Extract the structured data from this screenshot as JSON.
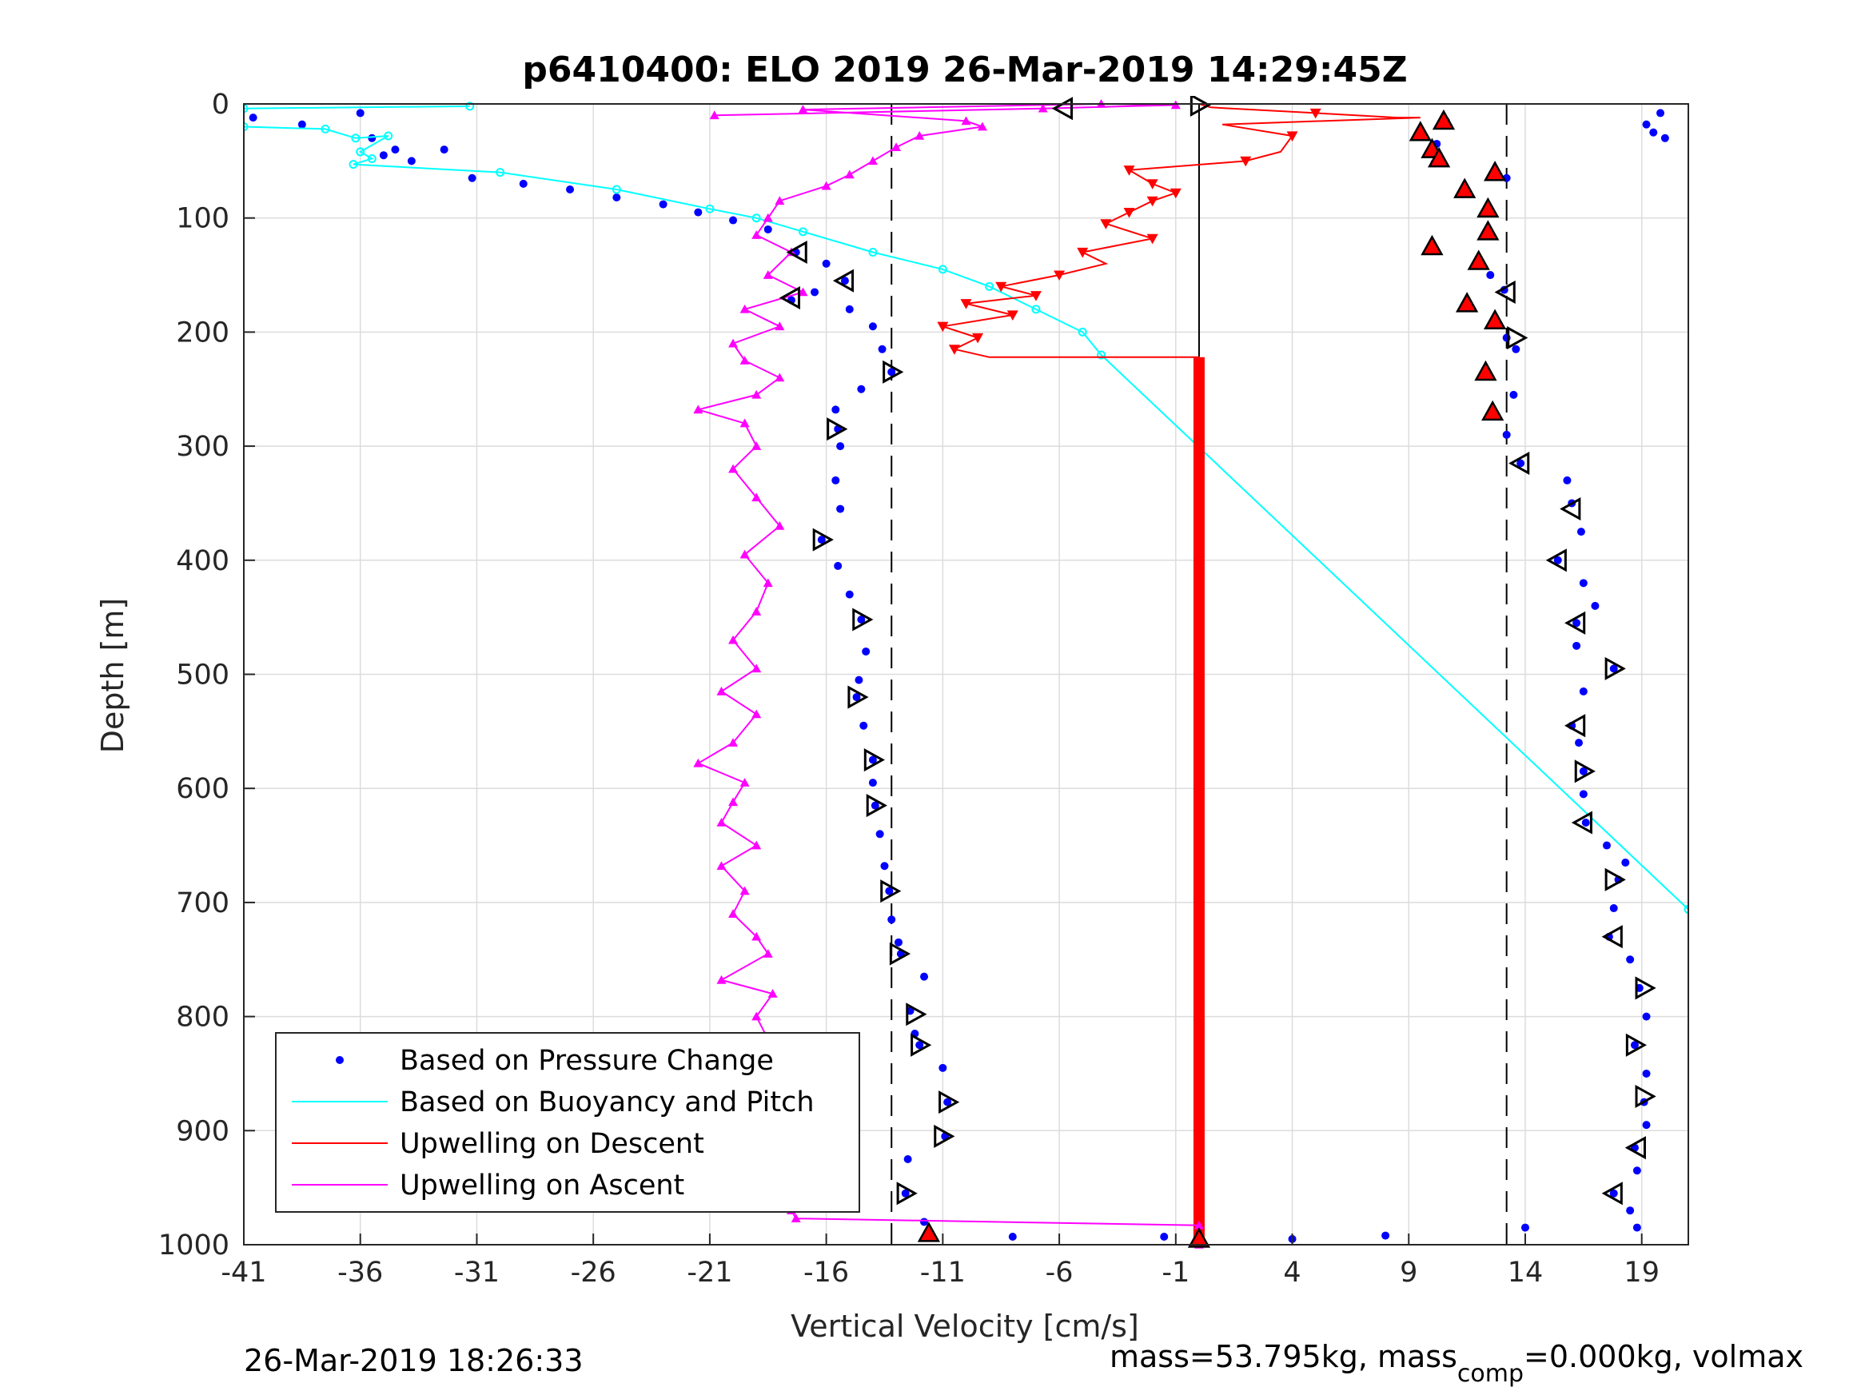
{
  "footer": {
    "timestamp": "26-Mar-2019 18:26:33",
    "mass_text_a": "mass=53.795kg, mass",
    "mass_sub": "comp",
    "mass_text_b": "=0.000kg, volmax"
  },
  "chart_data": {
    "type": "scatter",
    "title": "p6410400: ELO 2019 26-Mar-2019 14:29:45Z",
    "xlabel": "Vertical Velocity [cm/s]",
    "ylabel": "Depth [m]",
    "xlim": [
      -41,
      21
    ],
    "ylim": [
      1000,
      0
    ],
    "y_reversed": true,
    "grid": true,
    "xticks": [
      -41,
      -36,
      -31,
      -26,
      -21,
      -16,
      -11,
      -6,
      -1,
      4,
      9,
      14,
      19
    ],
    "yticks": [
      0,
      100,
      200,
      300,
      400,
      500,
      600,
      700,
      800,
      900,
      1000
    ],
    "legend_position": "bottom-left",
    "legend": [
      "Based on Pressure Change",
      "Based on Buoyancy and Pitch",
      "Upwelling on Descent",
      "Upwelling on Ascent"
    ],
    "colors": {
      "pressure": "#0000ff",
      "buoyancy": "#00ffff",
      "descent": "#ff0000",
      "ascent": "#ff00ff",
      "reference": "#000000"
    },
    "reference_lines": {
      "solid_x": 0,
      "dashed_x": [
        -13.2,
        13.2
      ]
    },
    "series": [
      {
        "name": "Based on Pressure Change",
        "role": "descent-profile",
        "points": [
          [
            -40.6,
            12
          ],
          [
            -38.5,
            18
          ],
          [
            -36,
            8
          ],
          [
            -35.5,
            30
          ],
          [
            -34.5,
            40
          ],
          [
            -35,
            45
          ],
          [
            -33.8,
            50
          ],
          [
            -32.4,
            40
          ],
          [
            -31.2,
            65
          ],
          [
            -29,
            70
          ],
          [
            -27,
            75
          ],
          [
            -25,
            82
          ],
          [
            -23,
            88
          ],
          [
            -21.5,
            95
          ],
          [
            -20,
            102
          ],
          [
            -18.5,
            110
          ],
          [
            -17.3,
            130
          ],
          [
            -16,
            140
          ],
          [
            -15.2,
            155
          ],
          [
            -16.5,
            165
          ],
          [
            -17.5,
            172
          ],
          [
            -15,
            180
          ],
          [
            -14,
            195
          ],
          [
            -13.6,
            215
          ],
          [
            -13.2,
            235
          ],
          [
            -14.5,
            250
          ],
          [
            -15.6,
            268
          ],
          [
            -15.5,
            285
          ],
          [
            -15.4,
            300
          ],
          [
            -15.6,
            330
          ],
          [
            -15.4,
            355
          ],
          [
            -16.2,
            382
          ],
          [
            -15.5,
            405
          ],
          [
            -15,
            430
          ],
          [
            -14.5,
            452
          ],
          [
            -14.3,
            480
          ],
          [
            -14.6,
            505
          ],
          [
            -14.7,
            520
          ],
          [
            -14.4,
            545
          ],
          [
            -14,
            575
          ],
          [
            -14,
            595
          ],
          [
            -13.9,
            615
          ],
          [
            -13.7,
            640
          ],
          [
            -13.5,
            668
          ],
          [
            -13.3,
            690
          ],
          [
            -13.2,
            715
          ],
          [
            -12.9,
            735
          ],
          [
            -12.8,
            745
          ],
          [
            -11.8,
            765
          ],
          [
            -12.4,
            795
          ],
          [
            -12.2,
            815
          ],
          [
            -12,
            825
          ],
          [
            -11,
            845
          ],
          [
            -10.8,
            875
          ],
          [
            -10.9,
            905
          ],
          [
            -12.5,
            925
          ],
          [
            -12.6,
            955
          ],
          [
            -11.8,
            980
          ],
          [
            -11.6,
            990
          ],
          [
            -8,
            993
          ],
          [
            -1.5,
            993
          ],
          [
            0,
            993
          ]
        ]
      },
      {
        "name": "Based on Pressure Change",
        "role": "ascent-profile",
        "points": [
          [
            19.8,
            8
          ],
          [
            19.2,
            18
          ],
          [
            19.5,
            25
          ],
          [
            20,
            30
          ],
          [
            9.5,
            25
          ],
          [
            10.6,
            15
          ],
          [
            10.2,
            35
          ],
          [
            10.3,
            45
          ],
          [
            10.1,
            52
          ],
          [
            12.7,
            60
          ],
          [
            13.2,
            65
          ],
          [
            11.4,
            75
          ],
          [
            12.4,
            90
          ],
          [
            12.4,
            110
          ],
          [
            10,
            125
          ],
          [
            12,
            138
          ],
          [
            12.5,
            150
          ],
          [
            13.1,
            163
          ],
          [
            11.5,
            175
          ],
          [
            12.7,
            190
          ],
          [
            13.2,
            205
          ],
          [
            13.6,
            215
          ],
          [
            12.3,
            235
          ],
          [
            13.5,
            255
          ],
          [
            12.6,
            270
          ],
          [
            13.2,
            290
          ],
          [
            13.8,
            315
          ],
          [
            15.8,
            330
          ],
          [
            16,
            350
          ],
          [
            16.4,
            375
          ],
          [
            15.4,
            400
          ],
          [
            16.5,
            420
          ],
          [
            17,
            440
          ],
          [
            16.2,
            455
          ],
          [
            16.2,
            475
          ],
          [
            17.8,
            495
          ],
          [
            16.5,
            515
          ],
          [
            16,
            545
          ],
          [
            16.3,
            560
          ],
          [
            16.5,
            585
          ],
          [
            16.5,
            605
          ],
          [
            16.6,
            630
          ],
          [
            17.5,
            650
          ],
          [
            18.3,
            665
          ],
          [
            18,
            680
          ],
          [
            17.8,
            705
          ],
          [
            17.6,
            730
          ],
          [
            18.5,
            750
          ],
          [
            18.9,
            775
          ],
          [
            19.2,
            800
          ],
          [
            18.7,
            825
          ],
          [
            19.2,
            850
          ],
          [
            19.1,
            875
          ],
          [
            19.2,
            895
          ],
          [
            18.7,
            915
          ],
          [
            18.8,
            935
          ],
          [
            17.8,
            955
          ],
          [
            18.5,
            970
          ],
          [
            18.8,
            985
          ],
          [
            14,
            985
          ],
          [
            8,
            992
          ],
          [
            4,
            995
          ]
        ]
      },
      {
        "name": "Based on Buoyancy and Pitch",
        "points": [
          [
            -31.3,
            2
          ],
          [
            -41,
            4
          ],
          [
            -41,
            20
          ],
          [
            -37.5,
            22
          ],
          [
            -36.2,
            30
          ],
          [
            -34.8,
            28
          ],
          [
            -36,
            42
          ],
          [
            -35.5,
            48
          ],
          [
            -36.3,
            53
          ],
          [
            -30,
            60
          ],
          [
            -25,
            75
          ],
          [
            -21,
            92
          ],
          [
            -19,
            100
          ],
          [
            -17,
            112
          ],
          [
            -14,
            130
          ],
          [
            -11,
            145
          ],
          [
            -9,
            160
          ],
          [
            -7,
            180
          ],
          [
            -5,
            200
          ],
          [
            -4.2,
            220
          ],
          [
            21,
            706
          ]
        ]
      },
      {
        "name": "Upwelling on Descent",
        "points": [
          [
            0,
            0
          ],
          [
            0.5,
            3
          ],
          [
            5,
            8
          ],
          [
            8.5,
            12
          ],
          [
            9.5,
            12
          ],
          [
            1,
            18
          ],
          [
            4,
            28
          ],
          [
            3.5,
            42
          ],
          [
            2,
            50
          ],
          [
            -3,
            58
          ],
          [
            -2,
            70
          ],
          [
            -1,
            78
          ],
          [
            -2,
            85
          ],
          [
            -3,
            95
          ],
          [
            -4,
            105
          ],
          [
            -2,
            118
          ],
          [
            -5,
            130
          ],
          [
            -4,
            140
          ],
          [
            -6,
            150
          ],
          [
            -8.5,
            160
          ],
          [
            -7,
            168
          ],
          [
            -10,
            175
          ],
          [
            -8,
            185
          ],
          [
            -11,
            195
          ],
          [
            -9.5,
            205
          ],
          [
            -10.5,
            215
          ],
          [
            -9,
            222
          ],
          [
            0,
            222
          ],
          [
            0,
            1000
          ]
        ]
      },
      {
        "name": "Upwelling on Ascent",
        "points": [
          [
            -20.8,
            10
          ],
          [
            -6.7,
            4
          ],
          [
            -1,
            1
          ],
          [
            -4.2,
            0
          ],
          [
            -17,
            5
          ],
          [
            -10,
            15
          ],
          [
            -9.3,
            20
          ],
          [
            -12,
            28
          ],
          [
            -13,
            38
          ],
          [
            -14,
            50
          ],
          [
            -15,
            62
          ],
          [
            -16,
            72
          ],
          [
            -18,
            85
          ],
          [
            -18.5,
            100
          ],
          [
            -19,
            115
          ],
          [
            -17.5,
            130
          ],
          [
            -18.5,
            150
          ],
          [
            -17,
            165
          ],
          [
            -19.5,
            180
          ],
          [
            -18,
            195
          ],
          [
            -20,
            210
          ],
          [
            -19.5,
            225
          ],
          [
            -18,
            240
          ],
          [
            -19,
            255
          ],
          [
            -21.5,
            268
          ],
          [
            -19.5,
            280
          ],
          [
            -19,
            300
          ],
          [
            -20,
            320
          ],
          [
            -19,
            345
          ],
          [
            -18,
            370
          ],
          [
            -19.5,
            395
          ],
          [
            -18.5,
            420
          ],
          [
            -19,
            445
          ],
          [
            -20,
            470
          ],
          [
            -19,
            495
          ],
          [
            -20.5,
            515
          ],
          [
            -19,
            535
          ],
          [
            -20,
            560
          ],
          [
            -21.5,
            578
          ],
          [
            -19.5,
            595
          ],
          [
            -20,
            612
          ],
          [
            -20.5,
            630
          ],
          [
            -19,
            650
          ],
          [
            -20.5,
            668
          ],
          [
            -19.5,
            690
          ],
          [
            -20,
            710
          ],
          [
            -19,
            730
          ],
          [
            -18.5,
            745
          ],
          [
            -20.5,
            768
          ],
          [
            -18.3,
            780
          ],
          [
            -19,
            800
          ],
          [
            -18.5,
            820
          ],
          [
            -19.5,
            845
          ],
          [
            -18,
            870
          ],
          [
            -19.5,
            895
          ],
          [
            -18.5,
            915
          ],
          [
            -18.5,
            935
          ],
          [
            -19.5,
            955
          ],
          [
            -17.5,
            970
          ],
          [
            -17.3,
            977
          ],
          [
            0,
            983
          ],
          [
            0,
            1000
          ]
        ]
      }
    ],
    "markers": {
      "triangle_left_open": [
        [
          -5.8,
          4
        ],
        [
          -17.2,
          130
        ],
        [
          -15.2,
          155
        ],
        [
          -17.5,
          170
        ],
        [
          13.2,
          165
        ],
        [
          13.8,
          315
        ],
        [
          16,
          355
        ],
        [
          15.4,
          400
        ],
        [
          16.2,
          455
        ],
        [
          16.2,
          545
        ],
        [
          16.5,
          630
        ],
        [
          17.8,
          730
        ],
        [
          18.8,
          915
        ],
        [
          17.8,
          955
        ]
      ],
      "triangle_right_open": [
        [
          0,
          1
        ],
        [
          -13.2,
          235
        ],
        [
          -15.6,
          285
        ],
        [
          -16.2,
          382
        ],
        [
          -14.5,
          452
        ],
        [
          -14.7,
          520
        ],
        [
          -14,
          575
        ],
        [
          -13.9,
          615
        ],
        [
          -13.3,
          690
        ],
        [
          -12.9,
          745
        ],
        [
          -12.2,
          798
        ],
        [
          -12,
          825
        ],
        [
          -10.8,
          875
        ],
        [
          -11,
          905
        ],
        [
          -12.6,
          955
        ],
        [
          13.6,
          205
        ],
        [
          17.8,
          495
        ],
        [
          16.5,
          585
        ],
        [
          17.8,
          680
        ],
        [
          19.1,
          775
        ],
        [
          18.7,
          825
        ],
        [
          19.1,
          870
        ]
      ],
      "triangle_up_red": [
        [
          9.5,
          25
        ],
        [
          10.5,
          15
        ],
        [
          10,
          40
        ],
        [
          10.3,
          48
        ],
        [
          12.7,
          60
        ],
        [
          11.4,
          75
        ],
        [
          12.4,
          92
        ],
        [
          12.4,
          112
        ],
        [
          10,
          125
        ],
        [
          12,
          138
        ],
        [
          11.5,
          175
        ],
        [
          12.7,
          190
        ],
        [
          12.3,
          235
        ],
        [
          12.6,
          270
        ],
        [
          -11.6,
          990
        ],
        [
          0,
          995
        ]
      ],
      "triangle_down_red": [
        [
          5,
          8
        ],
        [
          4,
          28
        ],
        [
          2,
          50
        ],
        [
          -3,
          58
        ],
        [
          -2,
          70
        ],
        [
          -1,
          78
        ],
        [
          -2,
          85
        ],
        [
          -3,
          95
        ],
        [
          -4,
          105
        ],
        [
          -2,
          118
        ],
        [
          -5,
          130
        ],
        [
          -6,
          150
        ],
        [
          -8.5,
          160
        ],
        [
          -7,
          168
        ],
        [
          -10,
          175
        ],
        [
          -8,
          185
        ],
        [
          -11,
          195
        ],
        [
          -9.5,
          205
        ],
        [
          -10.5,
          215
        ]
      ]
    }
  }
}
